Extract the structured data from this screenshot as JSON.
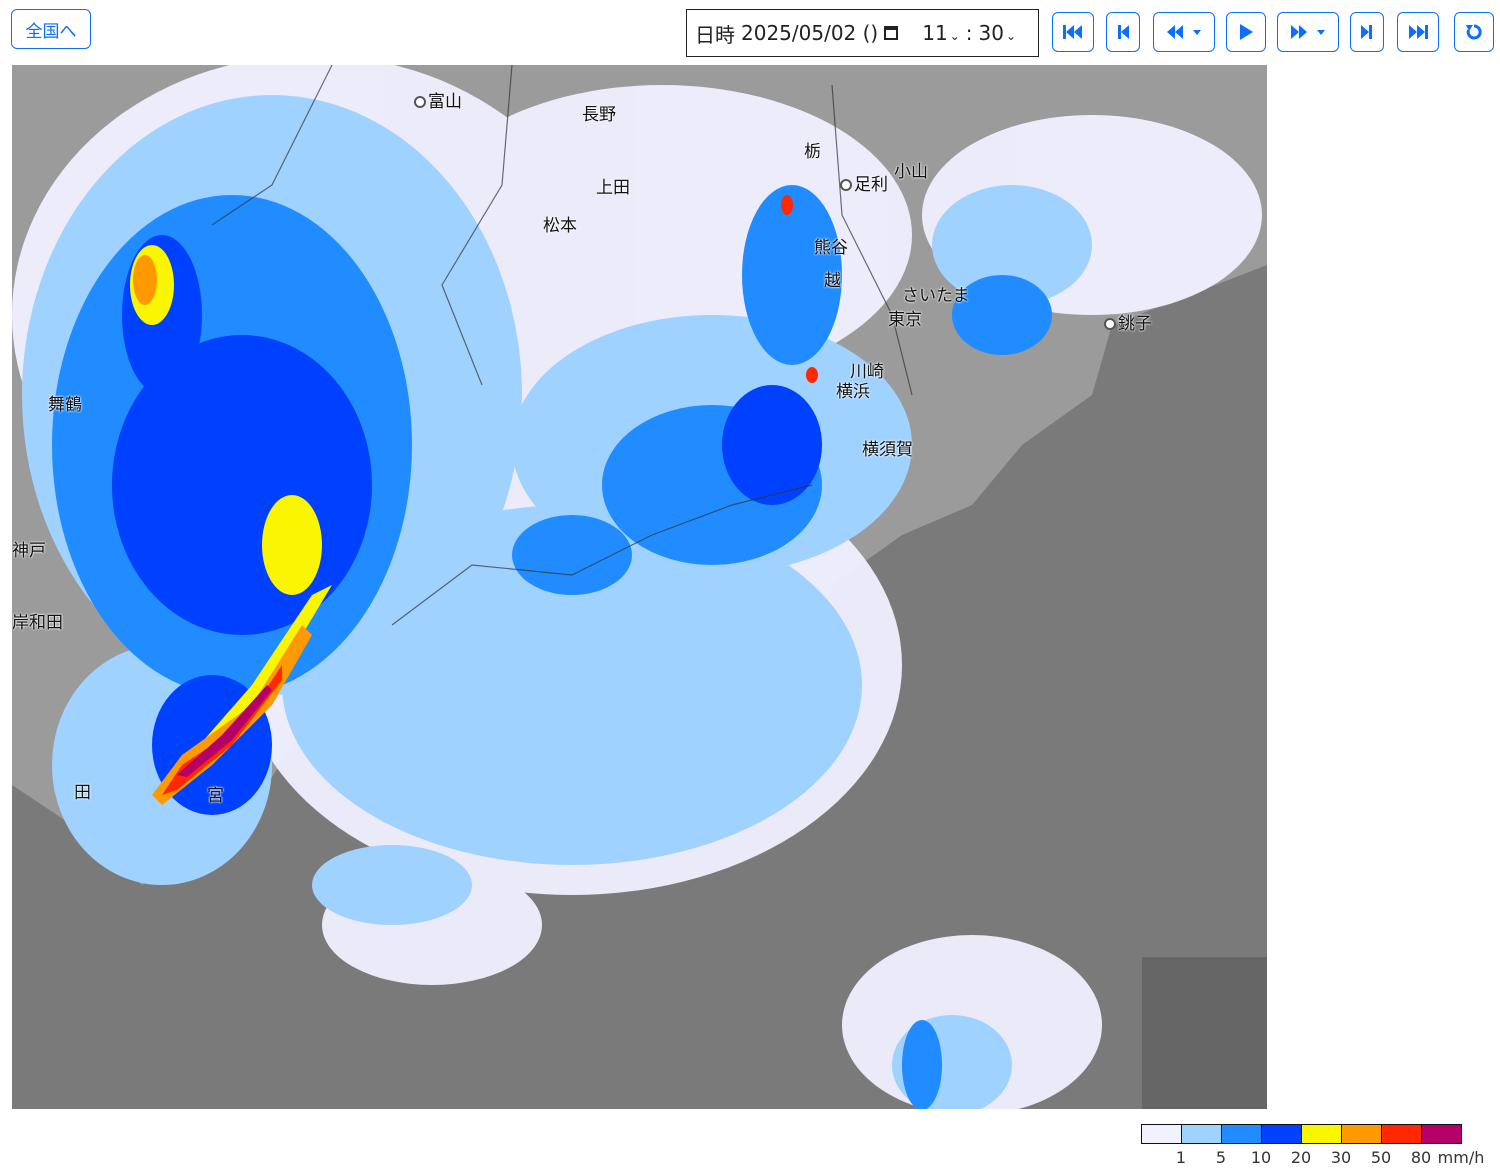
{
  "toolbar": {
    "home_label": "全国へ",
    "datetime_label": "日時",
    "date_value": "2025/05/02 ()",
    "hour_value": "11",
    "separator": ":",
    "minute_value": "30",
    "buttons": [
      "first-icon",
      "prev-icon",
      "rewind-menu-icon",
      "play-icon",
      "forward-menu-icon",
      "next-icon",
      "last-icon",
      "refresh-icon"
    ]
  },
  "map": {
    "cities": [
      "富山",
      "長野",
      "上田",
      "松本",
      "栃",
      "足利",
      "小山",
      "熊谷",
      "越",
      "さいたま",
      "東京",
      "川崎",
      "横浜",
      "横須賀",
      "銚子",
      "舞鶴",
      "神戸",
      "岸和田",
      "田",
      "宮"
    ]
  },
  "legend": {
    "colors": [
      "#f2f2ff",
      "#a0d2ff",
      "#218cff",
      "#0041ff",
      "#faf500",
      "#ff9900",
      "#ff2800",
      "#b40068"
    ],
    "ticks": [
      "1",
      "5",
      "10",
      "20",
      "30",
      "50",
      "80"
    ],
    "unit": "mm/h"
  }
}
